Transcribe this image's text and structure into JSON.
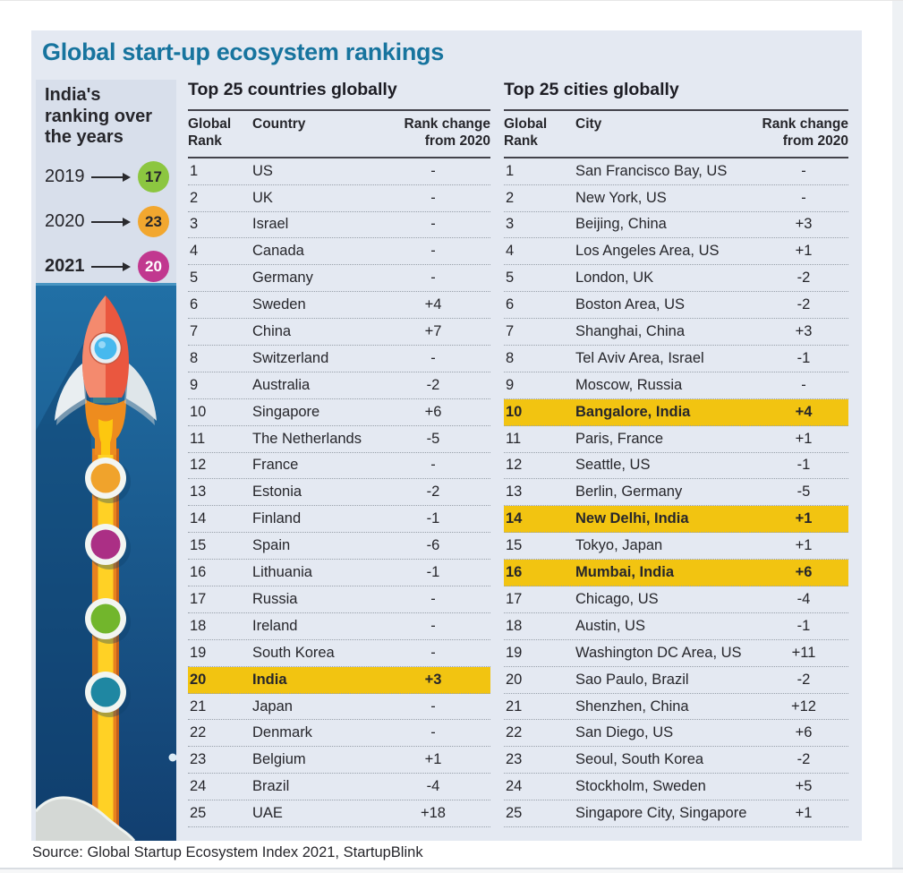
{
  "title": "Global start-up ecosystem rankings",
  "sidebar": {
    "heading": "India's ranking over the years",
    "years": [
      {
        "label": "2019",
        "value": "17"
      },
      {
        "label": "2020",
        "value": "23"
      },
      {
        "label": "2021",
        "value": "20"
      }
    ]
  },
  "source": "Source: Global Startup Ecosystem Index 2021, StartupBlink",
  "colors": {
    "title_teal": "#17749e",
    "panel_bg": "#e4e9f2",
    "sidebar_bg": "#d8dfeb",
    "highlight_yellow": "#f2c411",
    "year_2019_circle": "#8cc640",
    "year_2020_circle": "#f2a72f",
    "year_2021_circle": "#c1388f",
    "year_text_dark": "#26262b",
    "year_text_light": "#ffffff",
    "rocket_panel_blue": "#1d68a0"
  },
  "chart_data": [
    {
      "type": "table",
      "title": "Top 25 countries globally",
      "columns": [
        "Global Rank",
        "Country",
        "Rank change from 2020"
      ],
      "rows": [
        [
          1,
          "US",
          "-"
        ],
        [
          2,
          "UK",
          "-"
        ],
        [
          3,
          "Israel",
          "-"
        ],
        [
          4,
          "Canada",
          "-"
        ],
        [
          5,
          "Germany",
          "-"
        ],
        [
          6,
          "Sweden",
          "+4"
        ],
        [
          7,
          "China",
          "+7"
        ],
        [
          8,
          "Switzerland",
          "-"
        ],
        [
          9,
          "Australia",
          "-2"
        ],
        [
          10,
          "Singapore",
          "+6"
        ],
        [
          11,
          "The Netherlands",
          "-5"
        ],
        [
          12,
          "France",
          "-"
        ],
        [
          13,
          "Estonia",
          "-2"
        ],
        [
          14,
          "Finland",
          "-1"
        ],
        [
          15,
          "Spain",
          "-6"
        ],
        [
          16,
          "Lithuania",
          "-1"
        ],
        [
          17,
          "Russia",
          "-"
        ],
        [
          18,
          "Ireland",
          "-"
        ],
        [
          19,
          "South Korea",
          "-"
        ],
        [
          20,
          "India",
          "+3"
        ],
        [
          21,
          "Japan",
          "-"
        ],
        [
          22,
          "Denmark",
          "-"
        ],
        [
          23,
          "Belgium",
          "+1"
        ],
        [
          24,
          "Brazil",
          "-4"
        ],
        [
          25,
          "UAE",
          "+18"
        ]
      ],
      "highlighted_rows": [
        20
      ]
    },
    {
      "type": "table",
      "title": "Top 25 cities globally",
      "columns": [
        "Global Rank",
        "City",
        "Rank change from 2020"
      ],
      "rows": [
        [
          1,
          "San Francisco Bay, US",
          "-"
        ],
        [
          2,
          "New York, US",
          "-"
        ],
        [
          3,
          "Beijing, China",
          "+3"
        ],
        [
          4,
          "Los Angeles Area, US",
          "+1"
        ],
        [
          5,
          "London, UK",
          "-2"
        ],
        [
          6,
          "Boston Area, US",
          "-2"
        ],
        [
          7,
          "Shanghai, China",
          "+3"
        ],
        [
          8,
          "Tel Aviv Area, Israel",
          "-1"
        ],
        [
          9,
          "Moscow, Russia",
          "-"
        ],
        [
          10,
          "Bangalore, India",
          "+4"
        ],
        [
          11,
          "Paris, France",
          "+1"
        ],
        [
          12,
          "Seattle, US",
          "-1"
        ],
        [
          13,
          "Berlin, Germany",
          "-5"
        ],
        [
          14,
          "New Delhi, India",
          "+1"
        ],
        [
          15,
          "Tokyo, Japan",
          "+1"
        ],
        [
          16,
          "Mumbai, India",
          "+6"
        ],
        [
          17,
          "Chicago, US",
          "-4"
        ],
        [
          18,
          "Austin, US",
          "-1"
        ],
        [
          19,
          "Washington DC Area, US",
          "+11"
        ],
        [
          20,
          "Sao Paulo, Brazil",
          "-2"
        ],
        [
          21,
          "Shenzhen, China",
          "+12"
        ],
        [
          22,
          "San Diego, US",
          "+6"
        ],
        [
          23,
          "Seoul, South Korea",
          "-2"
        ],
        [
          24,
          "Stockholm, Sweden",
          "+5"
        ],
        [
          25,
          "Singapore City, Singapore",
          "+1"
        ]
      ],
      "highlighted_rows": [
        10,
        14,
        16
      ]
    },
    {
      "type": "line",
      "title": "India's ranking over the years",
      "x": [
        "2019",
        "2020",
        "2021"
      ],
      "values": [
        17,
        23,
        20
      ]
    }
  ]
}
